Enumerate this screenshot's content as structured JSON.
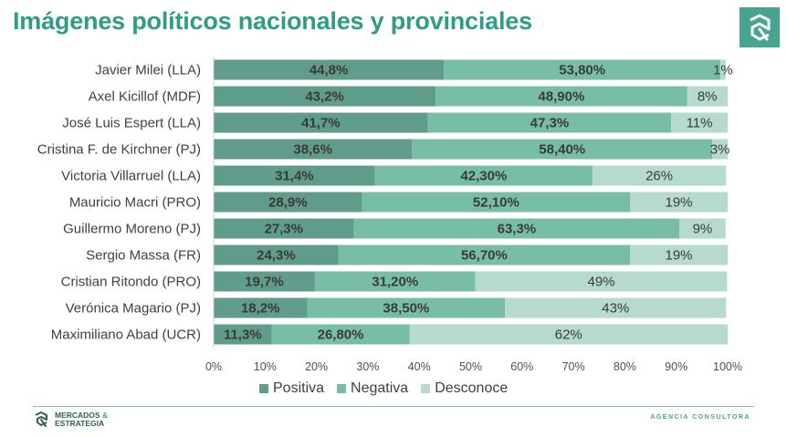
{
  "page": {
    "title": "Imágenes políticos nacionales y provinciales"
  },
  "brand": {
    "name_line1": "MERCADOS",
    "ampersand": "&",
    "name_line2": "ESTRATEGIA",
    "tagline": "AGENCIA CONSULTORA",
    "logo_icon": "brand-mark-icon"
  },
  "colors": {
    "title": "#2e9c86",
    "positiva": "#609c8b",
    "negativa": "#78bea6",
    "desconoce": "#b6dace",
    "accent": "#48a48f"
  },
  "legend": {
    "positiva": "Positiva",
    "negativa": "Negativa",
    "desconoce": "Desconoce"
  },
  "chart_data": {
    "type": "bar",
    "orientation": "horizontal",
    "stacked": true,
    "categories": [
      "Javier Milei (LLA)",
      "Axel Kicillof (MDF)",
      "José Luis Espert (LLA)",
      "Cristina F. de Kirchner (PJ)",
      "Victoria Villarruel (LLA)",
      "Mauricio Macri (PRO)",
      "Guillermo Moreno (PJ)",
      "Sergio Massa (FR)",
      "Cristian Ritondo (PRO)",
      "Verónica Magario (PJ)",
      "Maximiliano Abad (UCR)"
    ],
    "series": [
      {
        "name": "Positiva",
        "values": [
          44.8,
          43.2,
          41.7,
          38.6,
          31.4,
          28.9,
          27.3,
          24.3,
          19.7,
          18.2,
          11.3
        ],
        "labels": [
          "44,8%",
          "43,2%",
          "41,7%",
          "38,6%",
          "31,4%",
          "28,9%",
          "27,3%",
          "24,3%",
          "19,7%",
          "18,2%",
          "11,3%"
        ]
      },
      {
        "name": "Negativa",
        "values": [
          53.8,
          48.9,
          47.3,
          58.4,
          42.3,
          52.1,
          63.3,
          56.7,
          31.2,
          38.5,
          26.8
        ],
        "labels": [
          "53,80%",
          "48,90%",
          "47,3%",
          "58,40%",
          "42,30%",
          "52,10%",
          "63,3%",
          "56,70%",
          "31,20%",
          "38,50%",
          "26,80%"
        ]
      },
      {
        "name": "Desconoce",
        "values": [
          1,
          8,
          11,
          3,
          26,
          19,
          9,
          19,
          49,
          43,
          62
        ],
        "labels": [
          "1%",
          "8%",
          "11%",
          "3%",
          "26%",
          "19%",
          "9%",
          "19%",
          "49%",
          "43%",
          "62%"
        ]
      }
    ],
    "xlim": [
      0,
      100
    ],
    "x_ticks": [
      "0%",
      "10%",
      "20%",
      "30%",
      "40%",
      "50%",
      "60%",
      "70%",
      "80%",
      "90%",
      "100%"
    ],
    "grid": false,
    "legend_position": "bottom"
  }
}
